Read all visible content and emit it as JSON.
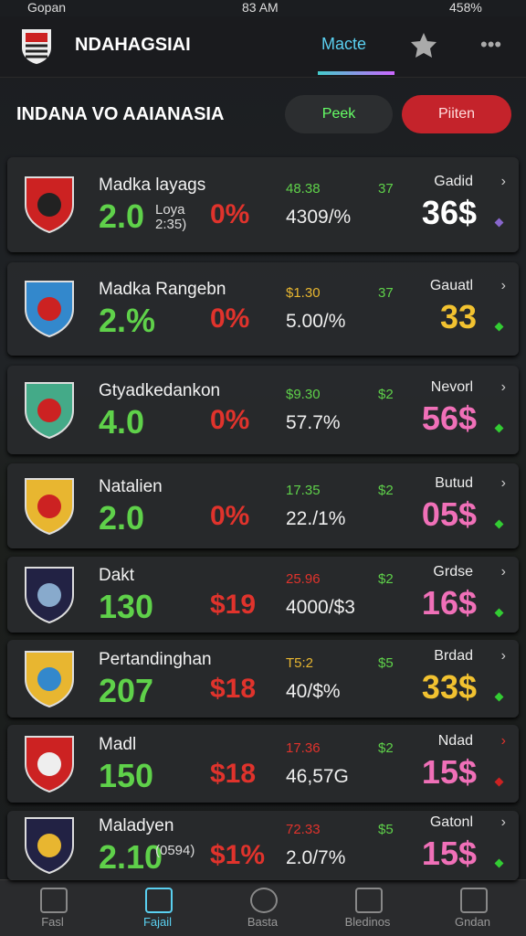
{
  "status": {
    "carrier": "Gopan",
    "time": "83 AM",
    "battery": "458%"
  },
  "header": {
    "title": "NDAHAGSIAI",
    "tab": "Macte"
  },
  "section": {
    "title": "INDANA VO AAIANASIA",
    "button_1": "Peek",
    "button_2": "Piiten"
  },
  "rows": [
    {
      "name": "Madka layags",
      "big": "2.0",
      "sub": "Loya 2:35)",
      "value": "0%",
      "top": "48.38",
      "mid": "4309/%",
      "col": "37",
      "right_label": "Gadid",
      "right_big": "36$",
      "big_color": "#5fd14a",
      "value_color": "#e0332c",
      "top_color": "#5fd14a",
      "right_color": "#ffffff"
    },
    {
      "name": "Madka Rangebn",
      "big": "2.%",
      "value": "0%",
      "top": "$1.30",
      "mid": "5.00/%",
      "col": "37",
      "right_label": "Gauatl",
      "right_big": "33",
      "big_color": "#5fd14a",
      "value_color": "#e0332c",
      "top_color": "#e8b630",
      "right_color": "#f2c230"
    },
    {
      "name": "Gtyadkedankon",
      "big": "4.0",
      "value": "0%",
      "top": "$9.30",
      "mid": "57.7%",
      "col": "$2",
      "right_label": "Nevorl",
      "right_big": "56$",
      "big_color": "#5fd14a",
      "value_color": "#e0332c",
      "top_color": "#5fd14a",
      "right_color": "#f070b8"
    },
    {
      "name": "Natalien",
      "big": "2.0",
      "value": "0%",
      "top": "17.35",
      "mid": "22./1%",
      "col": "$2",
      "right_label": "Butud",
      "right_big": "05$",
      "big_color": "#5fd14a",
      "value_color": "#e0332c",
      "top_color": "#5fd14a",
      "right_color": "#f070b8"
    },
    {
      "name": "Dakt",
      "big": "130",
      "value": "$19",
      "top": "25.96",
      "mid": "4000/$3",
      "col": "$2",
      "right_label": "Grdse",
      "right_big": "16$",
      "big_color": "#5fd14a",
      "value_color": "#e0332c",
      "top_color": "#e0332c",
      "right_color": "#f070b8"
    },
    {
      "name": "Pertandinghan",
      "big": "207",
      "value": "$18",
      "top": "T5:2",
      "mid": "40/$%",
      "col": "$5",
      "right_label": "Brdad",
      "right_big": "33$",
      "big_color": "#5fd14a",
      "value_color": "#e0332c",
      "top_color": "#e8b630",
      "right_color": "#f2c230"
    },
    {
      "name": "Madl",
      "big": "150",
      "value": "$18",
      "top": "17.36",
      "mid": "46,57G",
      "col": "$2",
      "right_label": "Ndad",
      "right_big": "15$",
      "big_color": "#5fd14a",
      "value_color": "#e0332c",
      "top_color": "#e0332c",
      "right_color": "#f070b8"
    },
    {
      "name": "Maladyen",
      "big": "2.10",
      "sub": "(0594)",
      "value": "$1%",
      "top": "72.33",
      "mid": "2.0/7%",
      "col": "$5",
      "right_label": "Gatonl",
      "right_big": "15$",
      "big_color": "#5fd14a",
      "value_color": "#e0332c",
      "top_color": "#e0332c",
      "right_color": "#f070b8"
    }
  ],
  "nav": [
    "Fasl",
    "Fajail",
    "Basta",
    "Bledinos",
    "Gndan"
  ]
}
